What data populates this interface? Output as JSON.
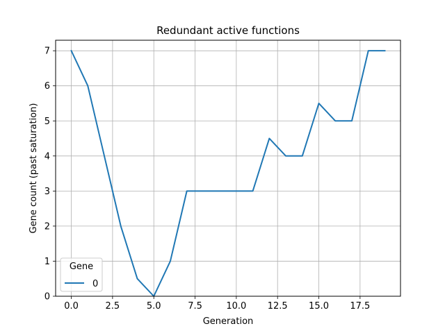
{
  "chart_data": {
    "type": "line",
    "title": "Redundant active functions",
    "xlabel": "Generation",
    "ylabel": "Gene count (past saturation)",
    "xlim": [
      -0.95,
      19.95
    ],
    "ylim": [
      0,
      7.3
    ],
    "xticks": [
      0.0,
      2.5,
      5.0,
      7.5,
      10.0,
      12.5,
      15.0,
      17.5
    ],
    "xtick_labels": [
      "0.0",
      "2.5",
      "5.0",
      "7.5",
      "10.0",
      "12.5",
      "15.0",
      "17.5"
    ],
    "yticks": [
      0,
      1,
      2,
      3,
      4,
      5,
      6,
      7
    ],
    "ytick_labels": [
      "0",
      "1",
      "2",
      "3",
      "4",
      "5",
      "6",
      "7"
    ],
    "grid": true,
    "legend": {
      "title": "Gene",
      "placement": "lower-left"
    },
    "series": [
      {
        "name": "0",
        "color": "#1f77b4",
        "x": [
          0,
          1,
          2,
          3,
          4,
          5,
          6,
          7,
          8,
          9,
          10,
          11,
          12,
          13,
          14,
          15,
          16,
          17,
          18,
          19
        ],
        "y": [
          7,
          6,
          4,
          2,
          0.5,
          0,
          1,
          3,
          3,
          3,
          3,
          3,
          4.5,
          4,
          4,
          5.5,
          5,
          5,
          7,
          7
        ]
      }
    ]
  }
}
